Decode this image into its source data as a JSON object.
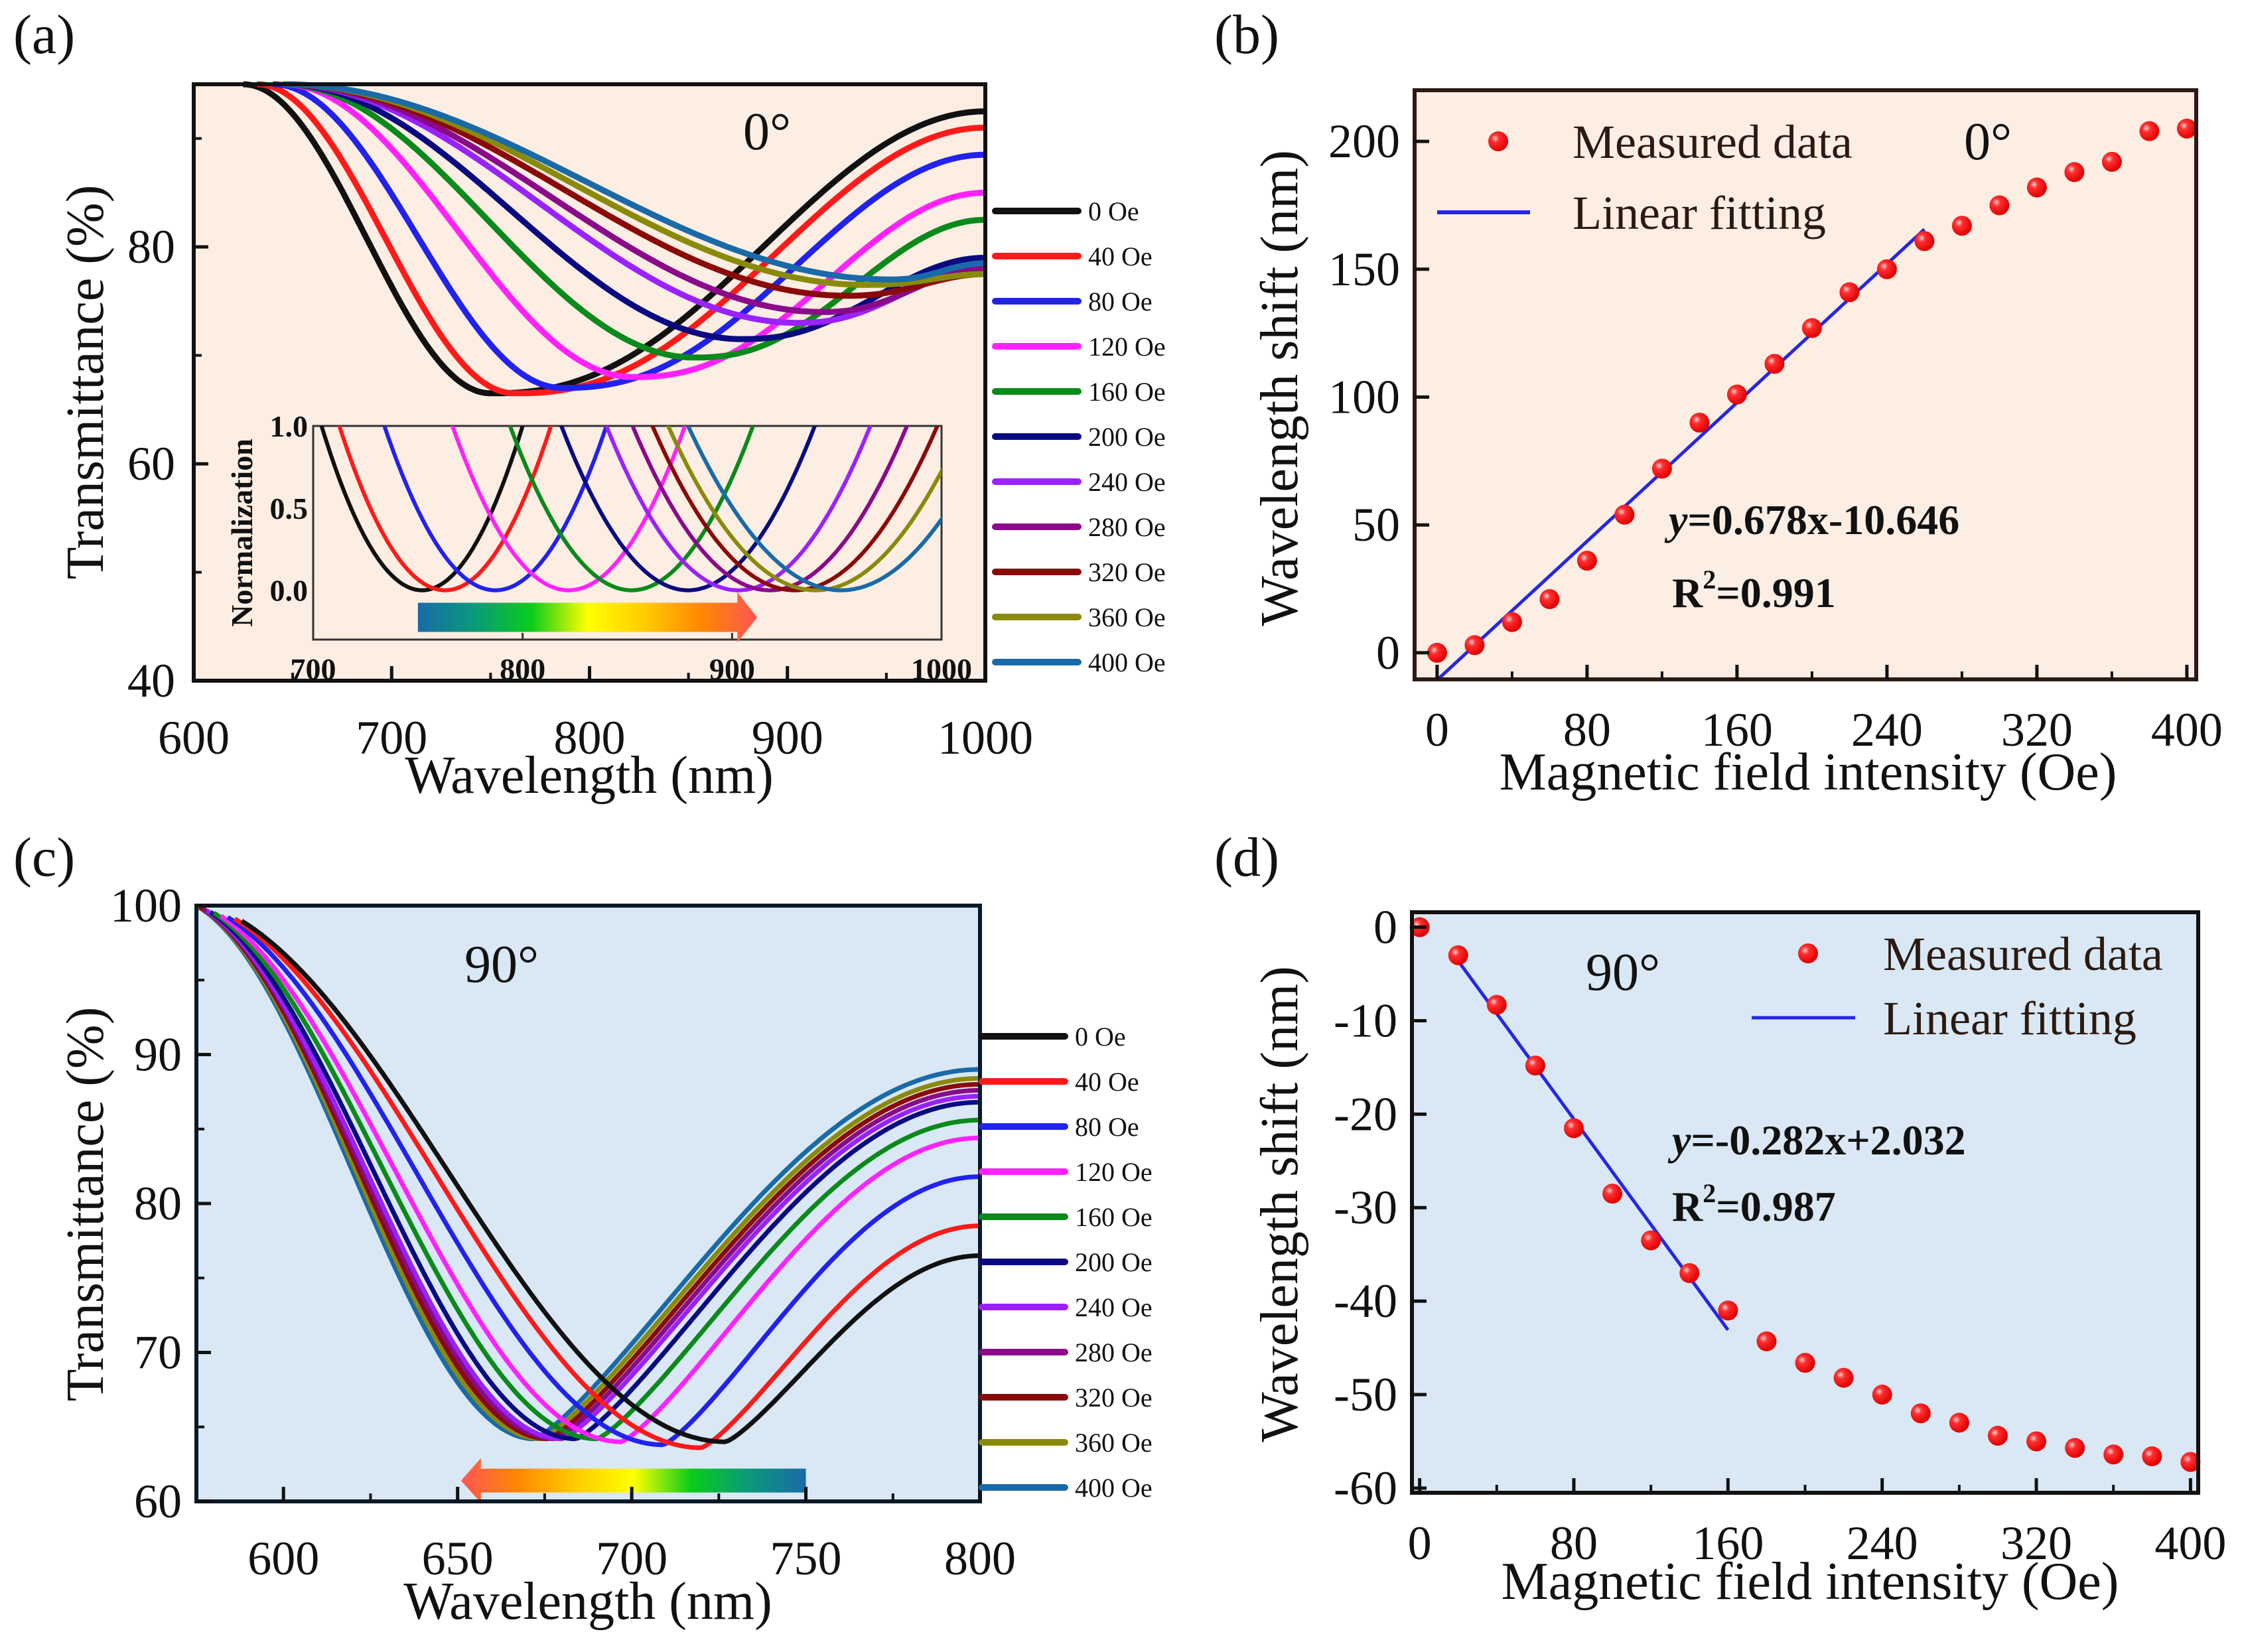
{
  "figure": {
    "panel_labels": [
      "(a)",
      "(b)",
      "(c)",
      "(d)"
    ],
    "colors": {
      "panel_a_bg": "#fdeee4",
      "panel_b_bg": "#fdeee4",
      "panel_c_bg": "#d9e8f4",
      "panel_d_bg": "#d9e8f4",
      "marker": "#ff1a1a",
      "fit_line": "#2626e6",
      "equation_b": "#3a2ae6",
      "equation_d": "#1c3ee6"
    }
  },
  "chart_data": [
    {
      "id": "a",
      "type": "line",
      "title": "",
      "annotation": "0°",
      "xlabel": "Wavelength (nm)",
      "ylabel": "Transmittance (%)",
      "xlim": [
        600,
        1000
      ],
      "ylim": [
        40,
        95
      ],
      "xticks": [
        600,
        700,
        800,
        900,
        1000
      ],
      "yticks": [
        40,
        60,
        80
      ],
      "grid": false,
      "legend_position": "right-outside",
      "series": [
        {
          "name": "0 Oe",
          "color": "#111111",
          "min_x": 750,
          "min_y": 66.5,
          "start_x": 625,
          "end_y": 92.5
        },
        {
          "name": "40 Oe",
          "color": "#ff1a1a",
          "min_x": 762,
          "min_y": 66.5,
          "start_x": 632,
          "end_y": 91.0
        },
        {
          "name": "80 Oe",
          "color": "#2222ee",
          "min_x": 786,
          "min_y": 67.0,
          "start_x": 640,
          "end_y": 88.5
        },
        {
          "name": "120 Oe",
          "color": "#ff22ff",
          "min_x": 822,
          "min_y": 68.0,
          "start_x": 645,
          "end_y": 85.0
        },
        {
          "name": "160 Oe",
          "color": "#0a8a1a",
          "min_x": 853,
          "min_y": 69.8,
          "start_x": 645,
          "end_y": 82.5
        },
        {
          "name": "200 Oe",
          "color": "#0a0a80",
          "min_x": 877,
          "min_y": 71.5,
          "start_x": 645,
          "end_y": 79.0
        },
        {
          "name": "240 Oe",
          "color": "#9a22ff",
          "min_x": 905,
          "min_y": 73.0,
          "start_x": 645,
          "end_y": 78.0
        },
        {
          "name": "280 Oe",
          "color": "#8a0a8a",
          "min_x": 918,
          "min_y": 74.0,
          "start_x": 645,
          "end_y": 78.0
        },
        {
          "name": "320 Oe",
          "color": "#8a0a0a",
          "min_x": 930,
          "min_y": 75.5,
          "start_x": 645,
          "end_y": 77.5
        },
        {
          "name": "360 Oe",
          "color": "#8a8a0a",
          "min_x": 940,
          "min_y": 76.5,
          "start_x": 645,
          "end_y": 77.5
        },
        {
          "name": "400 Oe",
          "color": "#1a6aa8",
          "min_x": 952,
          "min_y": 77.0,
          "start_x": 645,
          "end_y": 78.5
        }
      ],
      "inset": {
        "type": "line",
        "ylabel": "Normalization",
        "xlim": [
          700,
          1000
        ],
        "ylim": [
          -0.3,
          1.0
        ],
        "xticks": [
          700,
          800,
          900,
          1000
        ],
        "yticks": [
          "0.0",
          "0.5",
          "1.0"
        ],
        "minima_x": [
          752,
          763,
          787,
          822,
          852,
          879,
          903,
          918,
          930,
          940,
          952
        ],
        "arrow": {
          "direction": "right",
          "from_x": 750,
          "to_x": 912,
          "gradient": [
            "#1a6aa8",
            "#0a9a7a",
            "#0acc1a",
            "#ffff00",
            "#ffcc00",
            "#ff8800",
            "#ff5555"
          ]
        }
      }
    },
    {
      "id": "b",
      "type": "scatter",
      "annotation": "0°",
      "xlabel": "Magnetic field intensity (Oe)",
      "ylabel": "Wavelength shift (nm)",
      "xlim": [
        -12,
        405
      ],
      "ylim": [
        -10.4,
        220
      ],
      "xticks": [
        0,
        80,
        160,
        240,
        320,
        400
      ],
      "yticks": [
        0,
        50,
        100,
        150,
        200
      ],
      "grid": false,
      "legend": [
        "Measured data",
        "Linear fitting"
      ],
      "legend_position": "top-left",
      "series": [
        {
          "name": "Measured data",
          "x": [
            0,
            20,
            40,
            60,
            80,
            100,
            120,
            140,
            160,
            180,
            200,
            220,
            240,
            260,
            280,
            300,
            320,
            340,
            360,
            380,
            400
          ],
          "y": [
            0,
            3,
            12,
            21,
            36,
            54,
            72,
            90,
            101,
            113,
            127,
            141,
            150,
            161,
            167,
            175,
            182,
            188,
            192,
            204,
            205
          ]
        }
      ],
      "fit": {
        "name": "Linear fitting",
        "slope": 0.678,
        "intercept": -10.646,
        "x_range": [
          0,
          260
        ],
        "equation": "y=0.678x-10.646",
        "r2_label": "R",
        "r2_sup": "2",
        "r2_value": "=0.991"
      }
    },
    {
      "id": "c",
      "type": "line",
      "annotation": "90°",
      "xlabel": "Wavelength (nm)",
      "ylabel": "Transmittance (%)",
      "xlim": [
        575,
        800
      ],
      "ylim": [
        60,
        100
      ],
      "xticks": [
        600,
        650,
        700,
        750,
        800
      ],
      "yticks": [
        60,
        70,
        80,
        90,
        100
      ],
      "grid": false,
      "legend_position": "right-outside",
      "series": [
        {
          "name": "0 Oe",
          "color": "#111111",
          "min_x": 727,
          "min_y": 64.0,
          "start_x": 588,
          "end_y": 76.5
        },
        {
          "name": "40 Oe",
          "color": "#ff1a1a",
          "min_x": 720,
          "min_y": 63.6,
          "start_x": 586,
          "end_y": 78.5
        },
        {
          "name": "80 Oe",
          "color": "#2222ee",
          "min_x": 709,
          "min_y": 63.8,
          "start_x": 584,
          "end_y": 81.8
        },
        {
          "name": "120 Oe",
          "color": "#ff22ff",
          "min_x": 697,
          "min_y": 64.0,
          "start_x": 582,
          "end_y": 84.4
        },
        {
          "name": "160 Oe",
          "color": "#0a8a1a",
          "min_x": 690,
          "min_y": 64.2,
          "start_x": 580,
          "end_y": 85.6
        },
        {
          "name": "200 Oe",
          "color": "#0a0a80",
          "min_x": 684,
          "min_y": 64.2,
          "start_x": 579,
          "end_y": 86.8
        },
        {
          "name": "240 Oe",
          "color": "#9a22ff",
          "min_x": 680,
          "min_y": 64.2,
          "start_x": 578,
          "end_y": 87.2
        },
        {
          "name": "280 Oe",
          "color": "#8a0a8a",
          "min_x": 678,
          "min_y": 64.2,
          "start_x": 577,
          "end_y": 87.6
        },
        {
          "name": "320 Oe",
          "color": "#8a0a0a",
          "min_x": 676,
          "min_y": 64.2,
          "start_x": 576,
          "end_y": 88.0
        },
        {
          "name": "360 Oe",
          "color": "#8a8a0a",
          "min_x": 674,
          "min_y": 64.2,
          "start_x": 575,
          "end_y": 88.4
        },
        {
          "name": "400 Oe",
          "color": "#1a6aa8",
          "min_x": 672,
          "min_y": 64.2,
          "start_x": 575,
          "end_y": 89.0
        }
      ],
      "arrow": {
        "direction": "left",
        "from_x": 750,
        "to_x": 651,
        "gradient": [
          "#ff5555",
          "#ff8800",
          "#ffcc00",
          "#ffff00",
          "#0acc1a",
          "#0a9a7a",
          "#1a6aa8"
        ]
      }
    },
    {
      "id": "d",
      "type": "scatter",
      "annotation": "90°",
      "xlabel": "Magnetic field intensity (Oe)",
      "ylabel": "Wavelength shift (nm)",
      "xlim": [
        -4,
        404
      ],
      "ylim": [
        -60.5,
        1.6
      ],
      "xticks": [
        0,
        80,
        160,
        240,
        320,
        400
      ],
      "yticks": [
        0,
        -10,
        -20,
        -30,
        -40,
        -50,
        -60
      ],
      "grid": false,
      "legend": [
        "Measured data",
        "Linear fitting"
      ],
      "legend_position": "top-right",
      "series": [
        {
          "name": "Measured data",
          "x": [
            0,
            20,
            40,
            60,
            80,
            100,
            120,
            140,
            160,
            180,
            200,
            220,
            240,
            260,
            280,
            300,
            320,
            340,
            360,
            380,
            400
          ],
          "y": [
            0,
            -3,
            -8.3,
            -14.8,
            -21.5,
            -28.5,
            -33.5,
            -37,
            -41,
            -44.3,
            -46.6,
            -48.2,
            -50,
            -52,
            -53,
            -54.4,
            -55,
            -55.7,
            -56.4,
            -56.6,
            -57.2
          ]
        }
      ],
      "fit": {
        "name": "Linear fitting",
        "slope": -0.282,
        "intercept": 2.032,
        "x_range": [
          20,
          160
        ],
        "equation": "y=-0.282x+2.032",
        "r2_label": "R",
        "r2_sup": "2",
        "r2_value": "=0.987"
      }
    }
  ]
}
